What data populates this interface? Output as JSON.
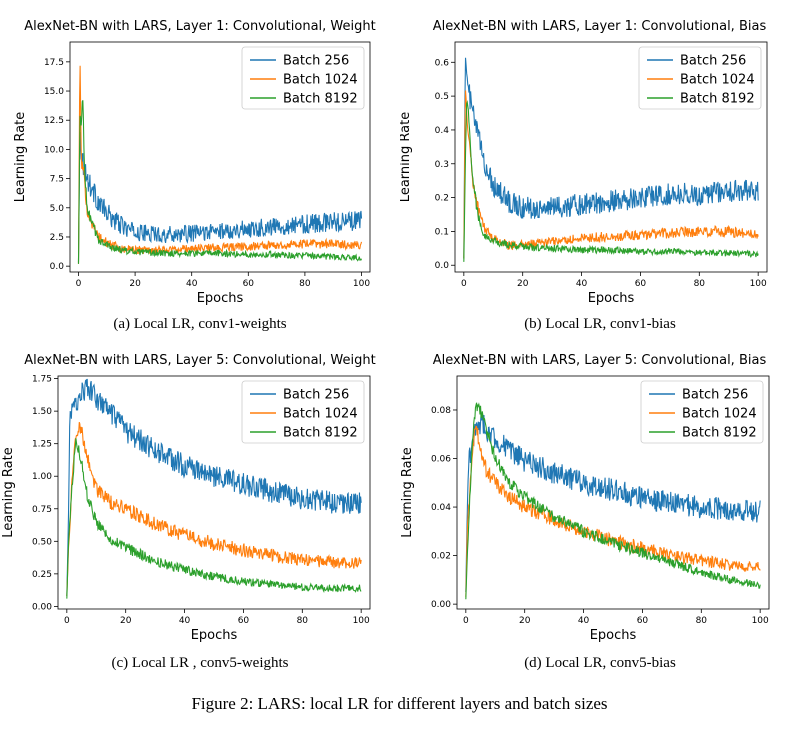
{
  "figure_caption": "Figure 2:  LARS: local LR for different layers and batch sizes",
  "colors": {
    "batch256": "#1f77b4",
    "batch1024": "#ff7f0e",
    "batch8192": "#2ca02c"
  },
  "chart_data": [
    {
      "type": "line",
      "title": "AlexNet-BN with LARS, Layer 1: Convolutional, Weight",
      "caption": "(a) Local LR, conv1-weights",
      "xlabel": "Epochs",
      "ylabel": "Learning Rate",
      "xlim": [
        -3,
        103
      ],
      "ylim": [
        -0.5,
        19.2
      ],
      "xticks": [
        "0",
        "20",
        "40",
        "60",
        "80",
        "100"
      ],
      "yticks": [
        "0.0",
        "2.5",
        "5.0",
        "7.5",
        "10.0",
        "12.5",
        "15.0",
        "17.5"
      ],
      "legend": "top-right",
      "series": [
        {
          "name": "Batch 256",
          "values": [
            [
              0,
              0.3
            ],
            [
              0.5,
              12.0
            ],
            [
              1,
              9.5
            ],
            [
              2,
              8.5
            ],
            [
              3,
              7.5
            ],
            [
              5,
              6.5
            ],
            [
              7,
              5.5
            ],
            [
              10,
              4.5
            ],
            [
              15,
              3.5
            ],
            [
              20,
              2.9
            ],
            [
              30,
              2.7
            ],
            [
              40,
              2.8
            ],
            [
              50,
              3.0
            ],
            [
              60,
              3.2
            ],
            [
              70,
              3.4
            ],
            [
              80,
              3.6
            ],
            [
              90,
              3.8
            ],
            [
              100,
              3.9
            ]
          ]
        },
        {
          "name": "Batch 1024",
          "values": [
            [
              0,
              0.2
            ],
            [
              0.5,
              18.4
            ],
            [
              1,
              9.0
            ],
            [
              2,
              7.5
            ],
            [
              3,
              5.0
            ],
            [
              5,
              3.5
            ],
            [
              7,
              2.5
            ],
            [
              10,
              2.0
            ],
            [
              15,
              1.5
            ],
            [
              20,
              1.4
            ],
            [
              30,
              1.4
            ],
            [
              40,
              1.5
            ],
            [
              50,
              1.6
            ],
            [
              60,
              1.7
            ],
            [
              70,
              1.8
            ],
            [
              80,
              1.9
            ],
            [
              90,
              1.9
            ],
            [
              100,
              1.8
            ]
          ]
        },
        {
          "name": "Batch 8192",
          "values": [
            [
              0,
              0.2
            ],
            [
              0.5,
              13.0
            ],
            [
              1,
              12.0
            ],
            [
              1.5,
              15.0
            ],
            [
              2,
              9.0
            ],
            [
              3,
              5.0
            ],
            [
              5,
              3.5
            ],
            [
              7,
              2.3
            ],
            [
              10,
              1.8
            ],
            [
              15,
              1.4
            ],
            [
              20,
              1.2
            ],
            [
              30,
              1.1
            ],
            [
              40,
              1.1
            ],
            [
              50,
              1.1
            ],
            [
              60,
              1.0
            ],
            [
              70,
              1.0
            ],
            [
              80,
              0.9
            ],
            [
              90,
              0.8
            ],
            [
              100,
              0.7
            ]
          ]
        }
      ]
    },
    {
      "type": "line",
      "title": "AlexNet-BN with LARS, Layer 1: Convolutional, Bias",
      "caption": "(b) Local LR, conv1-bias",
      "xlabel": "Epochs",
      "ylabel": "Learning Rate",
      "xlim": [
        -3,
        103
      ],
      "ylim": [
        -0.02,
        0.66
      ],
      "xticks": [
        "0",
        "20",
        "40",
        "60",
        "80",
        "100"
      ],
      "yticks": [
        "0.0",
        "0.1",
        "0.2",
        "0.3",
        "0.4",
        "0.5",
        "0.6"
      ],
      "legend": "top-right",
      "series": [
        {
          "name": "Batch 256",
          "values": [
            [
              0,
              0.02
            ],
            [
              0.5,
              0.63
            ],
            [
              1,
              0.55
            ],
            [
              2,
              0.5
            ],
            [
              3,
              0.45
            ],
            [
              5,
              0.38
            ],
            [
              7,
              0.3
            ],
            [
              10,
              0.24
            ],
            [
              15,
              0.19
            ],
            [
              20,
              0.17
            ],
            [
              30,
              0.17
            ],
            [
              40,
              0.18
            ],
            [
              50,
              0.19
            ],
            [
              60,
              0.2
            ],
            [
              70,
              0.21
            ],
            [
              80,
              0.21
            ],
            [
              90,
              0.22
            ],
            [
              100,
              0.22
            ]
          ]
        },
        {
          "name": "Batch 1024",
          "values": [
            [
              0,
              0.02
            ],
            [
              0.5,
              0.52
            ],
            [
              1,
              0.45
            ],
            [
              2,
              0.35
            ],
            [
              3,
              0.25
            ],
            [
              5,
              0.16
            ],
            [
              7,
              0.11
            ],
            [
              10,
              0.08
            ],
            [
              15,
              0.06
            ],
            [
              20,
              0.06
            ],
            [
              30,
              0.07
            ],
            [
              40,
              0.08
            ],
            [
              50,
              0.085
            ],
            [
              60,
              0.09
            ],
            [
              70,
              0.095
            ],
            [
              80,
              0.1
            ],
            [
              90,
              0.1
            ],
            [
              100,
              0.09
            ]
          ]
        },
        {
          "name": "Batch 8192",
          "values": [
            [
              0,
              0.01
            ],
            [
              0.5,
              0.3
            ],
            [
              1,
              0.5
            ],
            [
              2,
              0.4
            ],
            [
              3,
              0.25
            ],
            [
              5,
              0.14
            ],
            [
              7,
              0.09
            ],
            [
              10,
              0.07
            ],
            [
              15,
              0.06
            ],
            [
              20,
              0.055
            ],
            [
              30,
              0.05
            ],
            [
              40,
              0.045
            ],
            [
              50,
              0.045
            ],
            [
              60,
              0.04
            ],
            [
              70,
              0.04
            ],
            [
              80,
              0.038
            ],
            [
              90,
              0.035
            ],
            [
              100,
              0.033
            ]
          ]
        }
      ]
    },
    {
      "type": "line",
      "title": "AlexNet-BN with LARS, Layer 5: Convolutional, Weight",
      "caption": "(c) Local LR , conv5-weights",
      "xlabel": "Epochs",
      "ylabel": "Learning Rate",
      "xlim": [
        -3,
        103
      ],
      "ylim": [
        -0.02,
        1.77
      ],
      "xticks": [
        "0",
        "20",
        "40",
        "60",
        "80",
        "100"
      ],
      "yticks": [
        "0.00",
        "0.25",
        "0.50",
        "0.75",
        "1.00",
        "1.25",
        "1.50",
        "1.75"
      ],
      "legend": "top-right",
      "series": [
        {
          "name": "Batch 256",
          "values": [
            [
              0,
              0.08
            ],
            [
              0.5,
              0.6
            ],
            [
              1,
              1.45
            ],
            [
              3,
              1.55
            ],
            [
              5,
              1.65
            ],
            [
              7,
              1.68
            ],
            [
              10,
              1.6
            ],
            [
              15,
              1.48
            ],
            [
              20,
              1.35
            ],
            [
              30,
              1.2
            ],
            [
              40,
              1.08
            ],
            [
              50,
              1.0
            ],
            [
              60,
              0.94
            ],
            [
              70,
              0.88
            ],
            [
              80,
              0.83
            ],
            [
              90,
              0.8
            ],
            [
              100,
              0.79
            ]
          ]
        },
        {
          "name": "Batch 1024",
          "values": [
            [
              0,
              0.08
            ],
            [
              0.5,
              0.4
            ],
            [
              2,
              1.05
            ],
            [
              3,
              1.3
            ],
            [
              4,
              1.38
            ],
            [
              5,
              1.35
            ],
            [
              7,
              1.15
            ],
            [
              10,
              0.9
            ],
            [
              15,
              0.8
            ],
            [
              20,
              0.75
            ],
            [
              30,
              0.63
            ],
            [
              40,
              0.55
            ],
            [
              50,
              0.48
            ],
            [
              60,
              0.43
            ],
            [
              70,
              0.39
            ],
            [
              80,
              0.36
            ],
            [
              90,
              0.34
            ],
            [
              100,
              0.33
            ]
          ]
        },
        {
          "name": "Batch 8192",
          "values": [
            [
              0,
              0.06
            ],
            [
              0.5,
              0.45
            ],
            [
              2,
              1.0
            ],
            [
              3,
              1.25
            ],
            [
              4,
              1.22
            ],
            [
              5,
              1.1
            ],
            [
              7,
              0.85
            ],
            [
              10,
              0.65
            ],
            [
              15,
              0.52
            ],
            [
              20,
              0.45
            ],
            [
              30,
              0.35
            ],
            [
              40,
              0.28
            ],
            [
              50,
              0.23
            ],
            [
              60,
              0.19
            ],
            [
              70,
              0.17
            ],
            [
              80,
              0.15
            ],
            [
              90,
              0.14
            ],
            [
              100,
              0.14
            ]
          ]
        }
      ]
    },
    {
      "type": "line",
      "title": "AlexNet-BN with LARS, Layer 5: Convolutional, Bias",
      "caption": "(d) Local LR, conv5-bias",
      "xlabel": "Epochs",
      "ylabel": "Learning Rate",
      "xlim": [
        -3,
        103
      ],
      "ylim": [
        -0.002,
        0.094
      ],
      "xticks": [
        "0",
        "20",
        "40",
        "60",
        "80",
        "100"
      ],
      "yticks": [
        "0.00",
        "0.02",
        "0.04",
        "0.06",
        "0.08"
      ],
      "legend": "top-right",
      "series": [
        {
          "name": "Batch 256",
          "values": [
            [
              0,
              0.005
            ],
            [
              0.5,
              0.04
            ],
            [
              1,
              0.06
            ],
            [
              3,
              0.07
            ],
            [
              5,
              0.075
            ],
            [
              7,
              0.072
            ],
            [
              10,
              0.068
            ],
            [
              15,
              0.063
            ],
            [
              20,
              0.059
            ],
            [
              30,
              0.054
            ],
            [
              40,
              0.05
            ],
            [
              50,
              0.047
            ],
            [
              60,
              0.044
            ],
            [
              70,
              0.042
            ],
            [
              80,
              0.04
            ],
            [
              90,
              0.039
            ],
            [
              100,
              0.038
            ]
          ]
        },
        {
          "name": "Batch 1024",
          "values": [
            [
              0,
              0.003
            ],
            [
              0.5,
              0.03
            ],
            [
              2,
              0.06
            ],
            [
              3,
              0.072
            ],
            [
              4,
              0.07
            ],
            [
              5,
              0.062
            ],
            [
              7,
              0.055
            ],
            [
              10,
              0.05
            ],
            [
              15,
              0.044
            ],
            [
              20,
              0.04
            ],
            [
              30,
              0.035
            ],
            [
              40,
              0.03
            ],
            [
              50,
              0.026
            ],
            [
              60,
              0.023
            ],
            [
              70,
              0.02
            ],
            [
              80,
              0.018
            ],
            [
              90,
              0.016
            ],
            [
              100,
              0.015
            ]
          ]
        },
        {
          "name": "Batch 8192",
          "values": [
            [
              0,
              0.002
            ],
            [
              0.5,
              0.02
            ],
            [
              2,
              0.06
            ],
            [
              3,
              0.078
            ],
            [
              4,
              0.082
            ],
            [
              5,
              0.08
            ],
            [
              7,
              0.072
            ],
            [
              10,
              0.06
            ],
            [
              15,
              0.05
            ],
            [
              20,
              0.044
            ],
            [
              30,
              0.036
            ],
            [
              40,
              0.03
            ],
            [
              50,
              0.025
            ],
            [
              60,
              0.021
            ],
            [
              70,
              0.017
            ],
            [
              80,
              0.013
            ],
            [
              90,
              0.01
            ],
            [
              100,
              0.008
            ]
          ]
        }
      ]
    }
  ]
}
